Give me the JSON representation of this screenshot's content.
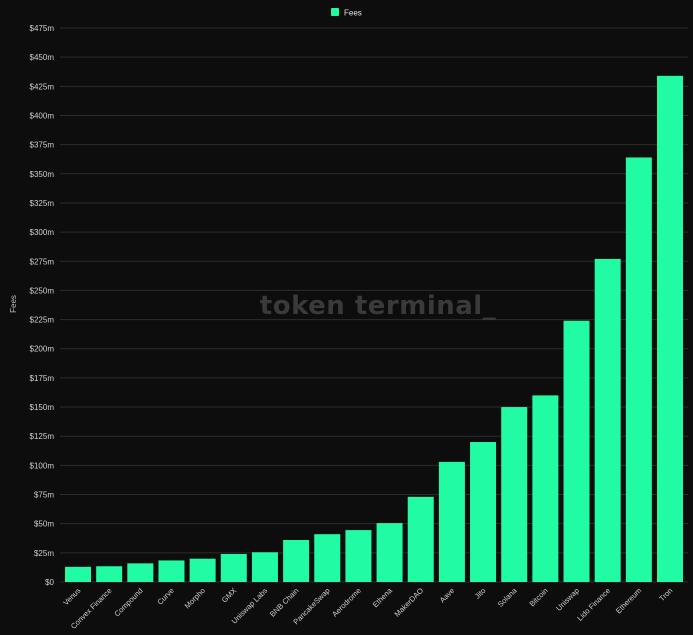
{
  "watermark": "token terminal_",
  "colors": {
    "bar": "#21fca4",
    "grid": "#2c2c2c",
    "background": "#0d0d0d"
  },
  "chart_data": {
    "type": "bar",
    "title": "",
    "xlabel": "",
    "ylabel": "Fees",
    "legend": {
      "position": "top-center",
      "entries": [
        "Fees"
      ]
    },
    "grid": true,
    "ylim": [
      0,
      475
    ],
    "yticks": [
      0,
      25,
      50,
      75,
      100,
      125,
      150,
      175,
      200,
      225,
      250,
      275,
      300,
      325,
      350,
      375,
      400,
      425,
      450,
      475
    ],
    "ytick_labels": [
      "$0",
      "$25m",
      "$50m",
      "$75m",
      "$100m",
      "$125m",
      "$150m",
      "$175m",
      "$200m",
      "$225m",
      "$250m",
      "$275m",
      "$300m",
      "$325m",
      "$350m",
      "$375m",
      "$400m",
      "$425m",
      "$450m",
      "$475m"
    ],
    "categories": [
      "Venus",
      "Convex Finance",
      "Compound",
      "Curve",
      "Morpho",
      "GMX",
      "Uniswap Labs",
      "BNB Chain",
      "PancakeSwap",
      "Aerodrome",
      "Ethena",
      "MakerDAO",
      "Aave",
      "Jito",
      "Solana",
      "Bitcoin",
      "Uniswap",
      "Lido Finance",
      "Ethereum",
      "Tron"
    ],
    "series": [
      {
        "name": "Fees",
        "values": [
          13,
          13.5,
          16,
          18.5,
          20,
          24,
          25.5,
          36,
          41,
          44.5,
          50.5,
          73,
          103,
          120,
          150,
          160,
          224,
          277,
          364,
          434
        ]
      }
    ]
  }
}
